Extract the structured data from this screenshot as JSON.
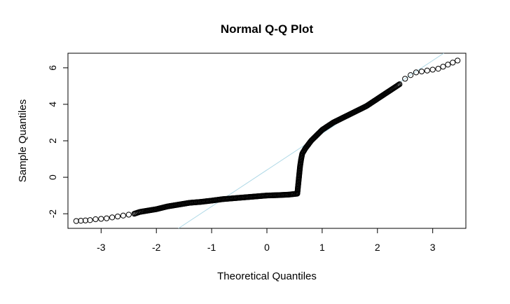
{
  "chart_data": {
    "type": "scatter",
    "title": "Normal Q-Q Plot",
    "xlabel": "Theoretical Quantiles",
    "ylabel": "Sample Quantiles",
    "xlim": [
      -3.6,
      3.6
    ],
    "ylim": [
      -2.8,
      6.8
    ],
    "x_ticks": [
      -3,
      -2,
      -1,
      0,
      1,
      2,
      3
    ],
    "y_ticks": [
      -2,
      0,
      2,
      4,
      6
    ],
    "grid": false,
    "marker": "open-circle",
    "point_color": "#000000",
    "reference_line": {
      "color": "#add8e6",
      "slope": 2.0,
      "intercept": 0.4
    },
    "points": [
      [
        -3.45,
        -2.4
      ],
      [
        -3.2,
        -2.35
      ],
      [
        -3.1,
        -2.3
      ],
      [
        -3.0,
        -2.28
      ],
      [
        -2.9,
        -2.25
      ],
      [
        -2.8,
        -2.2
      ],
      [
        -2.7,
        -2.15
      ],
      [
        -2.6,
        -2.1
      ],
      [
        -2.5,
        -2.05
      ],
      [
        -2.4,
        -2.0
      ],
      [
        -2.3,
        -1.9
      ],
      [
        -2.2,
        -1.85
      ],
      [
        -2.0,
        -1.75
      ],
      [
        -1.8,
        -1.6
      ],
      [
        -1.6,
        -1.5
      ],
      [
        -1.4,
        -1.4
      ],
      [
        -1.2,
        -1.35
      ],
      [
        -1.0,
        -1.28
      ],
      [
        -0.8,
        -1.2
      ],
      [
        -0.6,
        -1.15
      ],
      [
        -0.4,
        -1.1
      ],
      [
        -0.2,
        -1.05
      ],
      [
        0.0,
        -1.0
      ],
      [
        0.2,
        -0.98
      ],
      [
        0.4,
        -0.95
      ],
      [
        0.55,
        -0.9
      ],
      [
        0.56,
        -0.6
      ],
      [
        0.57,
        -0.3
      ],
      [
        0.58,
        0.0
      ],
      [
        0.59,
        0.3
      ],
      [
        0.6,
        0.6
      ],
      [
        0.62,
        1.0
      ],
      [
        0.64,
        1.3
      ],
      [
        0.7,
        1.6
      ],
      [
        0.8,
        2.0
      ],
      [
        0.9,
        2.3
      ],
      [
        1.0,
        2.6
      ],
      [
        1.2,
        3.0
      ],
      [
        1.4,
        3.3
      ],
      [
        1.6,
        3.6
      ],
      [
        1.8,
        3.9
      ],
      [
        2.0,
        4.3
      ],
      [
        2.2,
        4.7
      ],
      [
        2.3,
        4.9
      ],
      [
        2.4,
        5.1
      ],
      [
        2.5,
        5.4
      ],
      [
        2.6,
        5.6
      ],
      [
        2.7,
        5.75
      ],
      [
        2.8,
        5.8
      ],
      [
        2.9,
        5.85
      ],
      [
        3.1,
        5.95
      ],
      [
        3.45,
        6.4
      ]
    ]
  }
}
